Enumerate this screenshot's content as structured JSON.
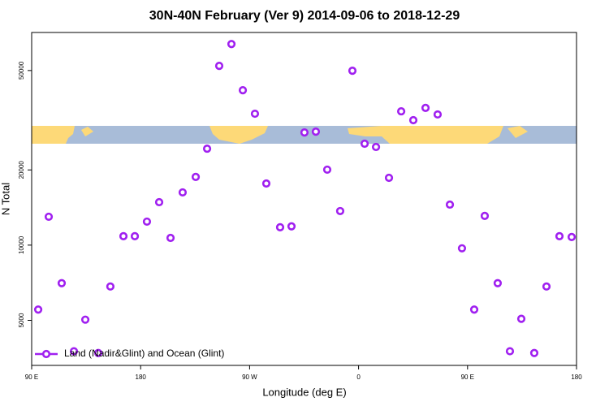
{
  "chart_data": {
    "type": "scatter",
    "title": "30N-40N February (Ver 9)   2014-09-06 to 2018-12-29",
    "xlabel": "Longitude (deg E)",
    "ylabel": "N Total",
    "xlim": [
      90,
      540
    ],
    "ylim": [
      3300,
      71000
    ],
    "log_y": true,
    "legend": "bottom-left",
    "xticks": [
      {
        "value": 90,
        "label": "90 E"
      },
      180,
      {
        "value": 270,
        "label": "90 W"
      },
      {
        "value": 360,
        "label": "0"
      },
      {
        "value": 450,
        "label": "90 E"
      },
      {
        "value": 540,
        "label": "180"
      }
    ],
    "yticks": [
      5000,
      10000,
      20000,
      50000
    ],
    "series": [
      {
        "name": "Land (Nadir&Glint) and Ocean (Glint)",
        "color": "#a020f0",
        "x": [
          95.4,
          104.1,
          114.8,
          124.9,
          134.3,
          145.0,
          155.0,
          165.8,
          175.2,
          185.2,
          195.3,
          204.7,
          214.7,
          225.5,
          234.9,
          244.9,
          255.0,
          264.4,
          274.4,
          283.8,
          295.2,
          304.6,
          315.3,
          324.7,
          334.1,
          344.8,
          354.9,
          365.0,
          374.4,
          385.1,
          395.2,
          405.2,
          415.3,
          425.3,
          435.4,
          445.4,
          455.5,
          464.2,
          474.9,
          485.0,
          494.4,
          505.1,
          515.2,
          525.9,
          536.0
        ],
        "values": [
          5520,
          12990,
          7040,
          3760,
          5030,
          3700,
          6830,
          10860,
          10860,
          12420,
          14860,
          10690,
          16260,
          18750,
          24330,
          52190,
          63800,
          41700,
          33570,
          17650,
          11790,
          11890,
          28250,
          28470,
          20050,
          13690,
          49900,
          25470,
          24720,
          18600,
          34330,
          31640,
          35430,
          33350,
          14530,
          9710,
          5520,
          13090,
          7040,
          3760,
          5070,
          3700,
          6830,
          10860,
          10780
        ]
      }
    ]
  }
}
